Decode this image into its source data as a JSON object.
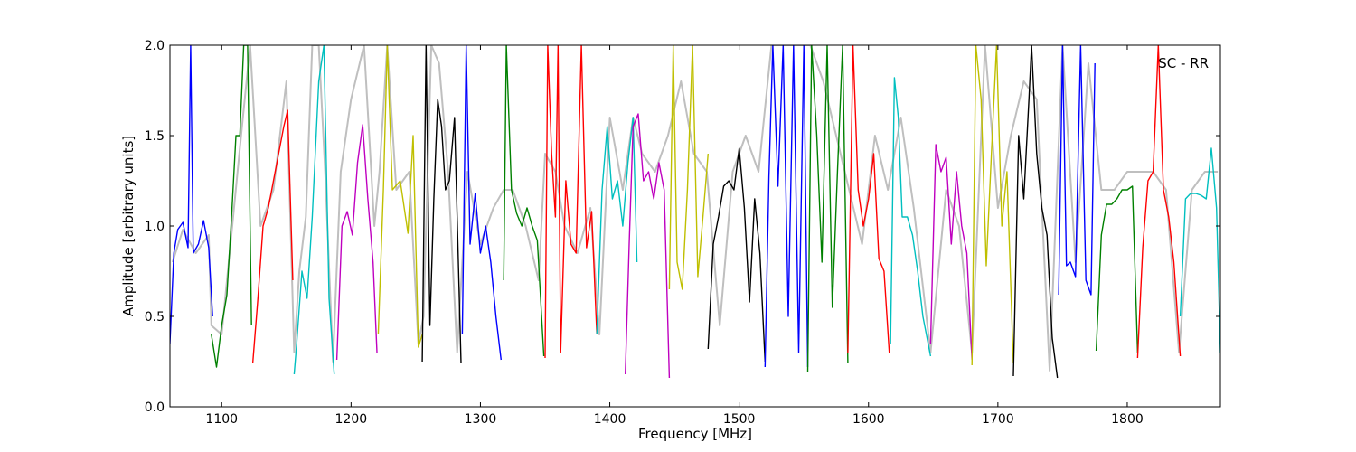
{
  "chart_data": {
    "type": "line",
    "title": "",
    "xlabel": "Frequency [MHz]",
    "ylabel": "Amplitude [arbitrary units]",
    "xlim": [
      1060,
      1872
    ],
    "ylim": [
      0.0,
      2.0
    ],
    "xticks": [
      1100,
      1200,
      1300,
      1400,
      1500,
      1600,
      1700,
      1800
    ],
    "xtick_labels": [
      "1100",
      "1200",
      "1300",
      "1400",
      "1500",
      "1600",
      "1700",
      "1800"
    ],
    "yticks": [
      0.0,
      0.5,
      1.0,
      1.5,
      2.0
    ],
    "ytick_labels": [
      "0.0",
      "0.5",
      "1.0",
      "1.5",
      "2.0"
    ],
    "grid": false,
    "annotation": "SC - RR",
    "annotation_position": "top-right",
    "background_series": {
      "color": "#bfbfbf",
      "x": [
        1062,
        1070,
        1080,
        1090,
        1092,
        1100,
        1115,
        1122,
        1130,
        1140,
        1150,
        1156,
        1160,
        1165,
        1170,
        1175,
        1180,
        1186,
        1192,
        1200,
        1210,
        1218,
        1222,
        1228,
        1235,
        1245,
        1252,
        1256,
        1262,
        1268,
        1275,
        1282,
        1290,
        1300,
        1310,
        1318,
        1325,
        1335,
        1345,
        1350,
        1358,
        1365,
        1375,
        1385,
        1392,
        1400,
        1410,
        1418,
        1425,
        1435,
        1445,
        1455,
        1465,
        1475,
        1485,
        1495,
        1505,
        1515,
        1525,
        1535,
        1545,
        1555,
        1565,
        1575,
        1585,
        1595,
        1605,
        1615,
        1625,
        1635,
        1648,
        1660,
        1670,
        1680,
        1690,
        1700,
        1710,
        1720,
        1730,
        1740,
        1750,
        1760,
        1770,
        1780,
        1790,
        1800,
        1810,
        1820,
        1830,
        1840,
        1850,
        1860,
        1870
      ],
      "y": [
        0.8,
        0.98,
        0.85,
        0.95,
        0.45,
        0.4,
        1.5,
        2.0,
        1.0,
        1.2,
        1.8,
        0.3,
        0.75,
        1.05,
        2.0,
        2.0,
        1.3,
        0.25,
        1.3,
        1.7,
        2.0,
        1.0,
        1.3,
        2.0,
        1.2,
        1.3,
        0.35,
        0.5,
        2.0,
        1.9,
        1.3,
        0.3,
        1.3,
        0.9,
        1.1,
        1.2,
        1.2,
        1.0,
        0.7,
        1.4,
        1.3,
        1.0,
        0.85,
        1.1,
        0.4,
        1.6,
        1.2,
        1.6,
        1.4,
        1.3,
        1.5,
        1.8,
        1.4,
        1.3,
        0.45,
        1.3,
        1.5,
        1.3,
        2.0,
        2.0,
        2.0,
        2.0,
        1.8,
        1.5,
        1.2,
        0.9,
        1.5,
        1.2,
        1.6,
        1.1,
        0.3,
        1.2,
        1.0,
        0.3,
        2.0,
        1.1,
        1.5,
        1.8,
        1.7,
        0.2,
        2.0,
        0.8,
        1.9,
        1.2,
        1.2,
        1.3,
        1.3,
        1.3,
        1.2,
        0.3,
        1.2,
        1.3,
        1.3
      ]
    },
    "series": [
      {
        "color": "#0000ff",
        "x": [
          1060,
          1063,
          1066,
          1070,
          1074,
          1076,
          1078,
          1082,
          1086,
          1090,
          1093
        ],
        "y": [
          0.35,
          0.85,
          0.98,
          1.02,
          0.88,
          2.0,
          0.85,
          0.9,
          1.03,
          0.88,
          0.5
        ]
      },
      {
        "color": "#008000",
        "x": [
          1092,
          1096,
          1100,
          1104,
          1108,
          1111,
          1114,
          1117,
          1120,
          1123
        ],
        "y": [
          0.4,
          0.22,
          0.45,
          0.62,
          1.1,
          1.5,
          1.5,
          2.0,
          2.0,
          0.45
        ]
      },
      {
        "color": "#ff0000",
        "x": [
          1124,
          1128,
          1132,
          1136,
          1140,
          1144,
          1148,
          1151,
          1155
        ],
        "y": [
          0.24,
          0.6,
          1.0,
          1.1,
          1.25,
          1.4,
          1.55,
          1.64,
          0.7
        ]
      },
      {
        "color": "#00bfbf",
        "x": [
          1156,
          1158,
          1162,
          1166,
          1170,
          1175,
          1179,
          1183,
          1187
        ],
        "y": [
          0.18,
          0.35,
          0.75,
          0.6,
          1.05,
          1.8,
          2.0,
          0.6,
          0.18
        ]
      },
      {
        "color": "#bf00bf",
        "x": [
          1189,
          1193,
          1197,
          1201,
          1205,
          1209,
          1213,
          1217,
          1220
        ],
        "y": [
          0.26,
          1.0,
          1.08,
          0.95,
          1.35,
          1.56,
          1.15,
          0.8,
          0.3
        ]
      },
      {
        "color": "#bfbf00",
        "x": [
          1221,
          1225,
          1228,
          1232,
          1238,
          1244,
          1248,
          1252,
          1255
        ],
        "y": [
          0.4,
          1.2,
          2.0,
          1.2,
          1.25,
          0.96,
          1.5,
          0.33,
          0.4
        ]
      },
      {
        "color": "#000000",
        "x": [
          1255,
          1258,
          1261,
          1264,
          1267,
          1270,
          1273,
          1276,
          1280,
          1285
        ],
        "y": [
          0.25,
          2.0,
          0.45,
          1.15,
          1.7,
          1.55,
          1.2,
          1.25,
          1.6,
          0.24
        ]
      },
      {
        "color": "#0000ff",
        "x": [
          1286,
          1289,
          1292,
          1296,
          1300,
          1304,
          1308,
          1312,
          1316
        ],
        "y": [
          0.4,
          2.0,
          0.9,
          1.18,
          0.85,
          1.0,
          0.8,
          0.5,
          0.26
        ]
      },
      {
        "color": "#008000",
        "x": [
          1318,
          1320,
          1324,
          1328,
          1332,
          1336,
          1340,
          1344,
          1349
        ],
        "y": [
          0.7,
          2.0,
          1.2,
          1.07,
          1.0,
          1.1,
          1.0,
          0.92,
          0.28
        ]
      },
      {
        "color": "#ff0000",
        "x": [
          1350,
          1352,
          1355,
          1358,
          1360,
          1362,
          1366,
          1370,
          1374,
          1378,
          1382,
          1386,
          1390
        ],
        "y": [
          0.27,
          2.0,
          1.4,
          1.05,
          2.0,
          0.3,
          1.25,
          0.9,
          0.85,
          2.0,
          0.88,
          1.08,
          0.4
        ]
      },
      {
        "color": "#00bfbf",
        "x": [
          1390,
          1394,
          1398,
          1402,
          1406,
          1410,
          1414,
          1418,
          1421
        ],
        "y": [
          0.4,
          1.2,
          1.55,
          1.15,
          1.25,
          1.0,
          1.35,
          1.6,
          0.8
        ]
      },
      {
        "color": "#bf00bf",
        "x": [
          1412,
          1415,
          1418,
          1422,
          1426,
          1430,
          1434,
          1438,
          1442,
          1446
        ],
        "y": [
          0.18,
          0.9,
          1.55,
          1.62,
          1.25,
          1.3,
          1.15,
          1.35,
          1.2,
          0.16
        ]
      },
      {
        "color": "#bfbf00",
        "x": [
          1446,
          1449,
          1452,
          1456,
          1460,
          1464,
          1468,
          1472,
          1476
        ],
        "y": [
          0.65,
          2.0,
          0.8,
          0.65,
          1.2,
          2.0,
          0.72,
          1.05,
          1.4
        ]
      },
      {
        "color": "#000000",
        "x": [
          1476,
          1480,
          1484,
          1488,
          1492,
          1496,
          1500,
          1504,
          1508,
          1512,
          1516,
          1520
        ],
        "y": [
          0.32,
          0.9,
          1.05,
          1.22,
          1.25,
          1.2,
          1.43,
          1.1,
          0.58,
          1.15,
          0.85,
          0.25
        ]
      },
      {
        "color": "#0000ff",
        "x": [
          1520,
          1523,
          1526,
          1530,
          1534,
          1538,
          1542,
          1546,
          1550,
          1553
        ],
        "y": [
          0.22,
          1.27,
          2.0,
          1.22,
          2.0,
          0.5,
          2.0,
          0.3,
          2.0,
          0.22
        ]
      },
      {
        "color": "#008000",
        "x": [
          1553,
          1556,
          1560,
          1564,
          1568,
          1572,
          1576,
          1580,
          1584
        ],
        "y": [
          0.19,
          2.0,
          1.5,
          0.8,
          2.0,
          0.55,
          1.3,
          2.0,
          0.24
        ]
      },
      {
        "color": "#ff0000",
        "x": [
          1584,
          1588,
          1592,
          1596,
          1600,
          1604,
          1608,
          1612,
          1616
        ],
        "y": [
          0.3,
          2.0,
          1.2,
          1.0,
          1.15,
          1.4,
          0.82,
          0.75,
          0.3
        ]
      },
      {
        "color": "#00bfbf",
        "x": [
          1617,
          1620,
          1623,
          1626,
          1630,
          1634,
          1638,
          1642,
          1648
        ],
        "y": [
          0.35,
          1.82,
          1.6,
          1.05,
          1.05,
          0.95,
          0.75,
          0.5,
          0.28
        ]
      },
      {
        "color": "#bf00bf",
        "x": [
          1648,
          1652,
          1656,
          1660,
          1664,
          1668,
          1672,
          1676,
          1680
        ],
        "y": [
          0.35,
          1.45,
          1.3,
          1.38,
          0.9,
          1.3,
          1.0,
          0.85,
          0.26
        ]
      },
      {
        "color": "#bfbf00",
        "x": [
          1680,
          1683,
          1687,
          1691,
          1695,
          1699,
          1703,
          1707,
          1712
        ],
        "y": [
          0.23,
          2.0,
          1.7,
          0.78,
          1.4,
          2.0,
          1.0,
          1.3,
          0.24
        ]
      },
      {
        "color": "#000000",
        "x": [
          1712,
          1716,
          1720,
          1724,
          1726,
          1730,
          1734,
          1738,
          1742,
          1746
        ],
        "y": [
          0.17,
          1.5,
          1.15,
          1.7,
          2.0,
          1.4,
          1.1,
          0.95,
          0.38,
          0.16
        ]
      },
      {
        "color": "#0000ff",
        "x": [
          1747,
          1750,
          1753,
          1756,
          1760,
          1764,
          1768,
          1772,
          1775
        ],
        "y": [
          0.62,
          2.0,
          0.78,
          0.8,
          0.72,
          2.0,
          0.7,
          0.62,
          1.9
        ]
      },
      {
        "color": "#008000",
        "x": [
          1776,
          1780,
          1784,
          1788,
          1792,
          1796,
          1800,
          1804,
          1808
        ],
        "y": [
          0.31,
          0.95,
          1.12,
          1.12,
          1.15,
          1.2,
          1.2,
          1.22,
          0.3
        ]
      },
      {
        "color": "#ff0000",
        "x": [
          1808,
          1812,
          1816,
          1820,
          1824,
          1828,
          1832,
          1836,
          1841
        ],
        "y": [
          0.27,
          0.88,
          1.25,
          1.3,
          2.0,
          1.2,
          1.05,
          0.8,
          0.28
        ]
      },
      {
        "color": "#00bfbf",
        "x": [
          1841,
          1845,
          1849,
          1853,
          1857,
          1861,
          1865,
          1869,
          1872
        ],
        "y": [
          0.5,
          1.15,
          1.18,
          1.18,
          1.17,
          1.15,
          1.43,
          1.1,
          0.3
        ]
      }
    ]
  }
}
